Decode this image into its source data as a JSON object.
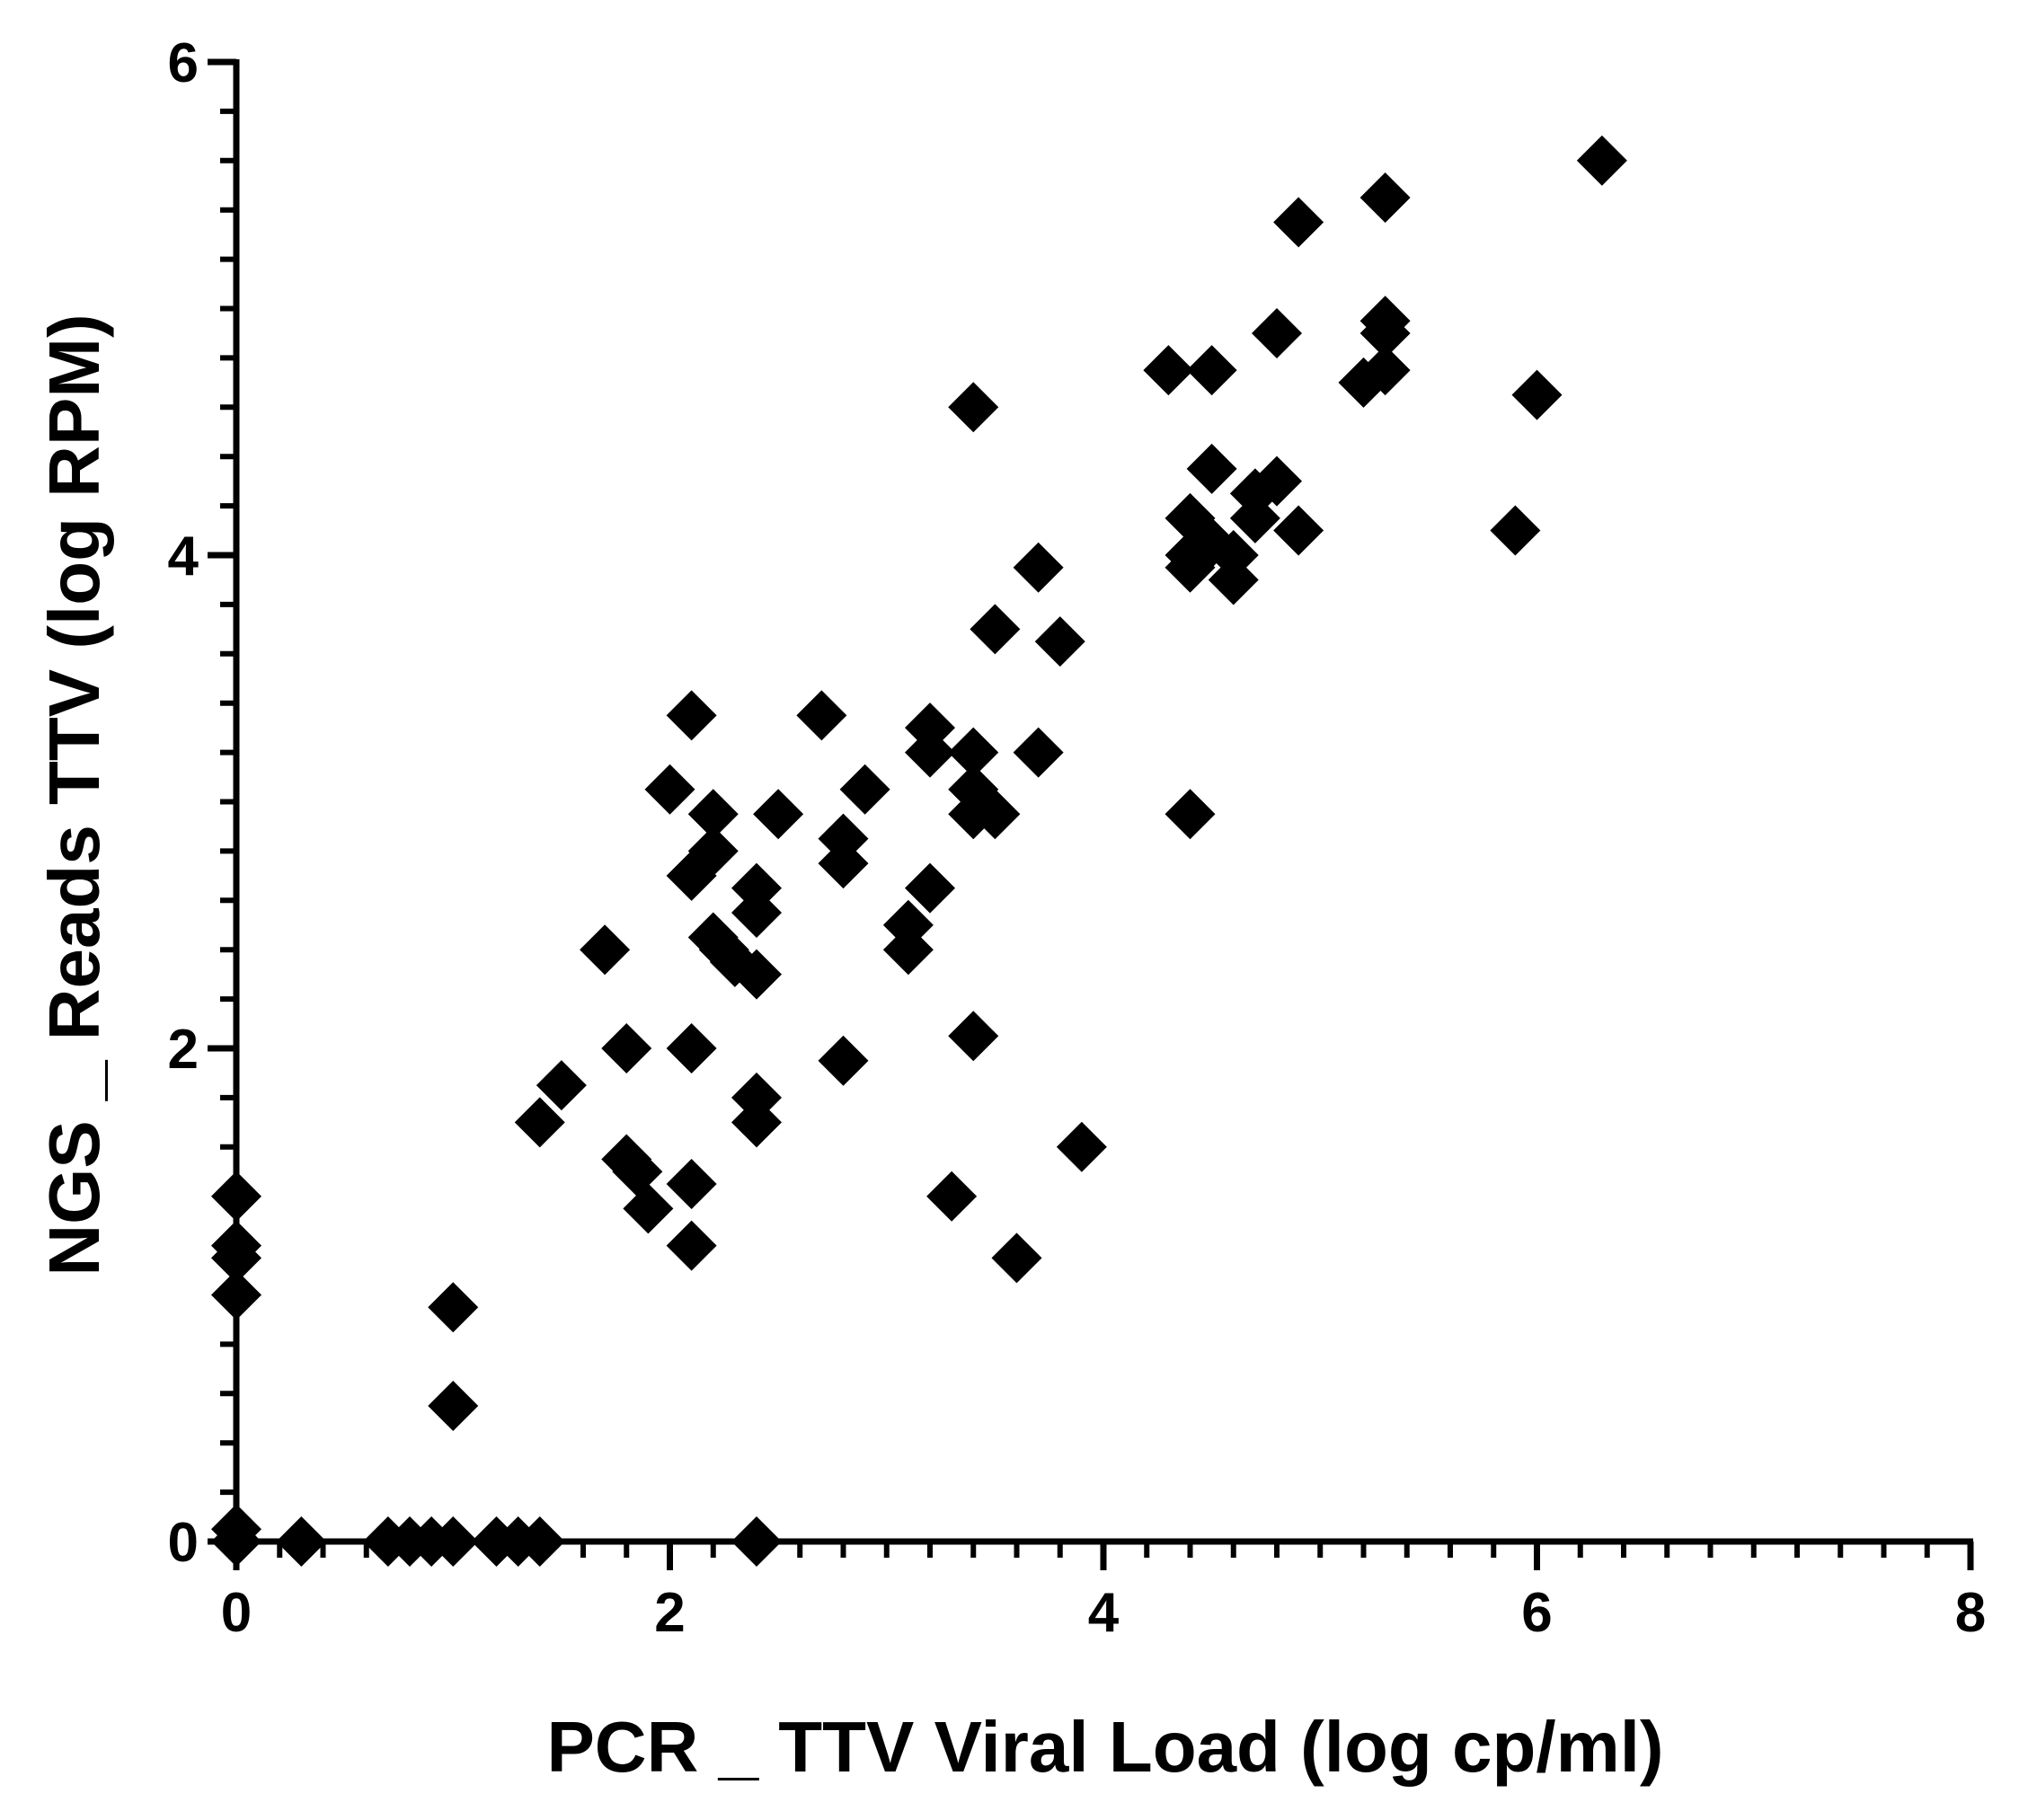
{
  "chart_data": {
    "type": "scatter",
    "title": "",
    "xlabel": "PCR _ TTV Viral Load  (log cp/ml)",
    "ylabel": "NGS _ Reads TTV (log RPM)",
    "xlim": [
      0,
      8
    ],
    "ylim": [
      0,
      6
    ],
    "x_ticks": [
      "0",
      "2",
      "4",
      "6",
      "8"
    ],
    "y_ticks": [
      "0",
      "2",
      "4",
      "6"
    ],
    "grid": false,
    "marker": "diamond",
    "marker_color": "#000000",
    "points": [
      [
        0,
        1.4
      ],
      [
        0,
        1.2
      ],
      [
        0,
        1.15
      ],
      [
        0,
        1.0
      ],
      [
        0,
        0.05
      ],
      [
        0,
        0.0
      ],
      [
        0.3,
        0.0
      ],
      [
        0.7,
        0.0
      ],
      [
        0.8,
        0.0
      ],
      [
        0.9,
        0.0
      ],
      [
        1.0,
        0.0
      ],
      [
        1.2,
        0.0
      ],
      [
        1.3,
        0.0
      ],
      [
        1.4,
        0.0
      ],
      [
        2.4,
        0.0
      ],
      [
        1.0,
        0.95
      ],
      [
        1.0,
        0.55
      ],
      [
        1.4,
        1.7
      ],
      [
        1.5,
        1.85
      ],
      [
        1.7,
        2.4
      ],
      [
        1.8,
        2.0
      ],
      [
        1.8,
        1.55
      ],
      [
        1.85,
        1.5
      ],
      [
        1.9,
        1.35
      ],
      [
        2.0,
        3.05
      ],
      [
        2.1,
        3.35
      ],
      [
        2.1,
        2.0
      ],
      [
        2.1,
        1.45
      ],
      [
        2.1,
        1.2
      ],
      [
        2.1,
        2.7
      ],
      [
        2.2,
        2.8
      ],
      [
        2.2,
        2.95
      ],
      [
        2.2,
        2.45
      ],
      [
        2.25,
        2.4
      ],
      [
        2.3,
        2.35
      ],
      [
        2.4,
        2.3
      ],
      [
        2.4,
        2.55
      ],
      [
        2.4,
        2.65
      ],
      [
        2.4,
        1.8
      ],
      [
        2.4,
        1.7
      ],
      [
        2.5,
        2.95
      ],
      [
        2.7,
        3.35
      ],
      [
        2.8,
        2.85
      ],
      [
        2.8,
        2.75
      ],
      [
        2.8,
        1.95
      ],
      [
        2.9,
        3.05
      ],
      [
        3.1,
        2.5
      ],
      [
        3.1,
        2.4
      ],
      [
        3.2,
        3.3
      ],
      [
        3.2,
        3.2
      ],
      [
        3.2,
        2.65
      ],
      [
        3.3,
        1.4
      ],
      [
        3.4,
        3.2
      ],
      [
        3.4,
        3.05
      ],
      [
        3.4,
        2.95
      ],
      [
        3.4,
        2.05
      ],
      [
        3.4,
        4.6
      ],
      [
        3.5,
        3.7
      ],
      [
        3.5,
        2.95
      ],
      [
        3.6,
        1.15
      ],
      [
        3.7,
        3.95
      ],
      [
        3.7,
        3.2
      ],
      [
        3.8,
        3.65
      ],
      [
        3.9,
        1.6
      ],
      [
        4.3,
        4.75
      ],
      [
        4.4,
        4.15
      ],
      [
        4.4,
        4.0
      ],
      [
        4.4,
        3.95
      ],
      [
        4.4,
        2.95
      ],
      [
        4.5,
        4.75
      ],
      [
        4.5,
        4.35
      ],
      [
        4.5,
        4.05
      ],
      [
        4.6,
        3.9
      ],
      [
        4.6,
        4.0
      ],
      [
        4.7,
        4.25
      ],
      [
        4.7,
        4.15
      ],
      [
        4.8,
        4.3
      ],
      [
        4.8,
        4.9
      ],
      [
        4.9,
        4.1
      ],
      [
        4.9,
        5.35
      ],
      [
        5.2,
        4.7
      ],
      [
        5.3,
        4.75
      ],
      [
        5.3,
        4.9
      ],
      [
        5.3,
        4.95
      ],
      [
        5.3,
        5.45
      ],
      [
        5.9,
        4.1
      ],
      [
        6.0,
        4.65
      ],
      [
        6.3,
        5.6
      ]
    ]
  }
}
